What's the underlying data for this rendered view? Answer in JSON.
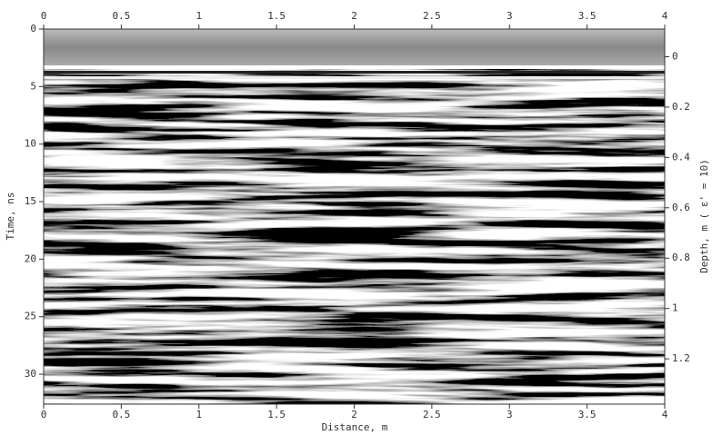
{
  "chart_data": {
    "type": "radargram",
    "xlabel": "Distance, m",
    "ylabel": "Time, ns",
    "y2label": "Depth, m ( ε' = 10)",
    "xlim": [
      0,
      4
    ],
    "xticks": [
      0,
      0.5,
      1,
      1.5,
      2,
      2.5,
      3,
      3.5,
      4
    ],
    "ylim": [
      0,
      32.6
    ],
    "yticks": [
      0,
      5,
      10,
      15,
      20,
      25,
      30
    ],
    "y2lim": [
      -0.11,
      1.38
    ],
    "y2ticks": [
      0,
      0.2,
      0.4,
      0.6,
      0.8,
      1,
      1.2
    ]
  }
}
